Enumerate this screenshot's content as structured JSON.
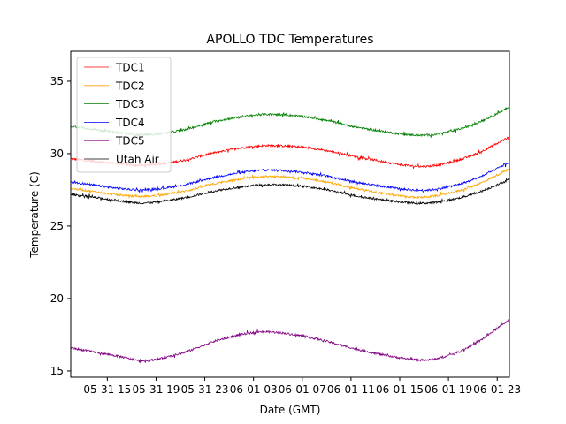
{
  "chart_data": {
    "type": "line",
    "title": "APOLLO TDC Temperatures",
    "xlabel": "Date (GMT)",
    "ylabel": "Temperature (C)",
    "x_units": "hours since 05-31 12:00 GMT",
    "xlim": [
      0,
      36
    ],
    "ylim": [
      14.57,
      37.07
    ],
    "xticks": [
      {
        "hour": 3,
        "label": "05-31 15"
      },
      {
        "hour": 7,
        "label": "05-31 19"
      },
      {
        "hour": 11,
        "label": "05-31 23"
      },
      {
        "hour": 15,
        "label": "06-01 03"
      },
      {
        "hour": 19,
        "label": "06-01 07"
      },
      {
        "hour": 23,
        "label": "06-01 11"
      },
      {
        "hour": 27,
        "label": "06-01 15"
      },
      {
        "hour": 31,
        "label": "06-01 19"
      },
      {
        "hour": 35,
        "label": "06-01 23"
      }
    ],
    "yticks": [
      15,
      20,
      25,
      30,
      35
    ],
    "grid": false,
    "legend_position": "top-left",
    "x": [
      0,
      4,
      6,
      9,
      12,
      15,
      17,
      20,
      24,
      28,
      30,
      33,
      36
    ],
    "series": [
      {
        "name": "TDC1",
        "color": "#ff0000",
        "values": [
          29.65,
          29.3,
          29.2,
          29.5,
          30.1,
          30.5,
          30.55,
          30.35,
          29.7,
          29.15,
          29.2,
          29.9,
          31.15
        ]
      },
      {
        "name": "TDC2",
        "color": "#ffa500",
        "values": [
          27.6,
          27.15,
          27.05,
          27.35,
          27.95,
          28.35,
          28.4,
          28.2,
          27.5,
          27.0,
          27.1,
          27.75,
          28.95
        ]
      },
      {
        "name": "TDC3",
        "color": "#008000",
        "values": [
          31.9,
          31.45,
          31.3,
          31.6,
          32.25,
          32.65,
          32.7,
          32.45,
          31.75,
          31.3,
          31.35,
          32.0,
          33.2
        ]
      },
      {
        "name": "TDC4",
        "color": "#0000ff",
        "values": [
          28.05,
          27.6,
          27.5,
          27.8,
          28.4,
          28.8,
          28.85,
          28.6,
          27.95,
          27.5,
          27.55,
          28.2,
          29.4
        ]
      },
      {
        "name": "TDC5",
        "color": "#800080",
        "values": [
          16.6,
          16.0,
          15.7,
          16.2,
          17.1,
          17.65,
          17.65,
          17.25,
          16.4,
          15.8,
          15.85,
          16.8,
          18.55
        ]
      },
      {
        "name": "Utah Air",
        "color": "#000000",
        "values": [
          27.2,
          26.75,
          26.6,
          26.9,
          27.45,
          27.8,
          27.85,
          27.65,
          27.0,
          26.6,
          26.65,
          27.2,
          28.2
        ]
      }
    ]
  }
}
